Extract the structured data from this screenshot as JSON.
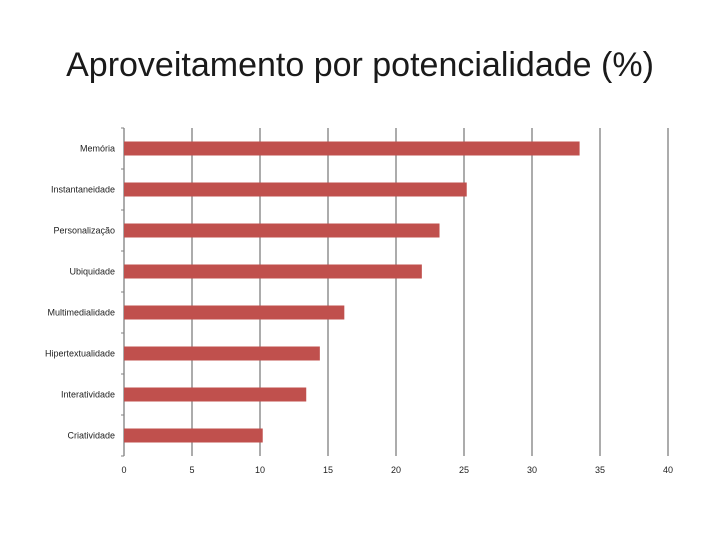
{
  "title": "Aproveitamento por potencialidade (%)",
  "colors": {
    "bar": "#c0504d",
    "grid": "#808080",
    "axis": "#808080"
  },
  "chart_data": {
    "type": "bar",
    "orientation": "horizontal",
    "title": "Aproveitamento por potencialidade (%)",
    "xlabel": "",
    "ylabel": "",
    "categories": [
      "Memória",
      "Instantaneidade",
      "Personalização",
      "Ubiquidade",
      "Multimedialidade",
      "Hipertextualidade",
      "Interatividade",
      "Criatividade"
    ],
    "values": [
      33.5,
      25.2,
      23.2,
      21.9,
      16.2,
      14.4,
      13.4,
      10.2
    ],
    "xlim": [
      0,
      40
    ],
    "xticks": [
      0,
      5,
      10,
      15,
      20,
      25,
      30,
      35,
      40
    ],
    "xtick_labels": [
      "0",
      "5",
      "10",
      "15",
      "20",
      "25",
      "30",
      "35",
      "40"
    ],
    "grid": true,
    "legend": "none"
  }
}
